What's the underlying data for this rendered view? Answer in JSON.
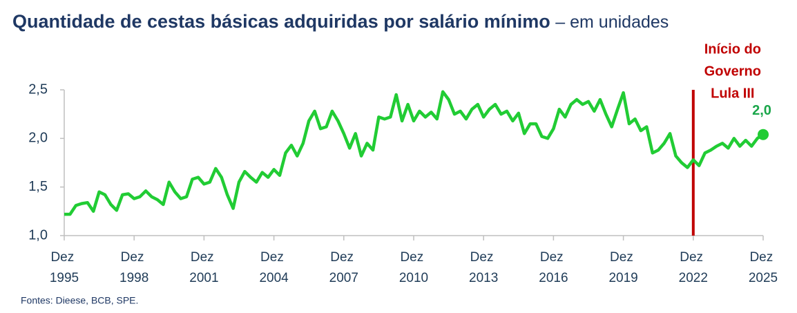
{
  "chart_data": {
    "type": "line",
    "title": "Quantidade de cestas básicas adquiridas por salário mínimo",
    "subtitle": "– em unidades",
    "source": "Fontes: Dieese, BCB, SPE.",
    "color": "#21cc34",
    "x": [
      "1995-12",
      "1996-03",
      "1996-06",
      "1996-09",
      "1996-12",
      "1997-03",
      "1997-06",
      "1997-09",
      "1997-12",
      "1998-03",
      "1998-06",
      "1998-09",
      "1998-12",
      "1999-03",
      "1999-06",
      "1999-09",
      "1999-12",
      "2000-03",
      "2000-06",
      "2000-09",
      "2000-12",
      "2001-03",
      "2001-06",
      "2001-09",
      "2001-12",
      "2002-03",
      "2002-06",
      "2002-09",
      "2002-12",
      "2003-03",
      "2003-06",
      "2003-09",
      "2003-12",
      "2004-03",
      "2004-06",
      "2004-09",
      "2004-12",
      "2005-03",
      "2005-06",
      "2005-09",
      "2005-12",
      "2006-03",
      "2006-06",
      "2006-09",
      "2006-12",
      "2007-03",
      "2007-06",
      "2007-09",
      "2007-12",
      "2008-03",
      "2008-06",
      "2008-09",
      "2008-12",
      "2009-03",
      "2009-06",
      "2009-09",
      "2009-12",
      "2010-03",
      "2010-06",
      "2010-09",
      "2010-12",
      "2011-03",
      "2011-06",
      "2011-09",
      "2011-12",
      "2012-03",
      "2012-06",
      "2012-09",
      "2012-12",
      "2013-03",
      "2013-06",
      "2013-09",
      "2013-12",
      "2014-03",
      "2014-06",
      "2014-09",
      "2014-12",
      "2015-03",
      "2015-06",
      "2015-09",
      "2015-12",
      "2016-03",
      "2016-06",
      "2016-09",
      "2016-12",
      "2017-03",
      "2017-06",
      "2017-09",
      "2017-12",
      "2018-03",
      "2018-06",
      "2018-09",
      "2018-12",
      "2019-03",
      "2019-06",
      "2019-09",
      "2019-12",
      "2020-03",
      "2020-06",
      "2020-09",
      "2020-12",
      "2021-03",
      "2021-06",
      "2021-09",
      "2021-12",
      "2022-03",
      "2022-06",
      "2022-09",
      "2022-12",
      "2023-03",
      "2023-06",
      "2023-09",
      "2023-12",
      "2024-03",
      "2024-06",
      "2024-09",
      "2024-12",
      "2025-03",
      "2025-06",
      "2025-09",
      "2025-12"
    ],
    "values": [
      1.22,
      1.22,
      1.31,
      1.33,
      1.34,
      1.25,
      1.45,
      1.42,
      1.32,
      1.26,
      1.42,
      1.43,
      1.38,
      1.4,
      1.46,
      1.4,
      1.37,
      1.32,
      1.55,
      1.45,
      1.38,
      1.4,
      1.58,
      1.6,
      1.53,
      1.55,
      1.69,
      1.6,
      1.42,
      1.28,
      1.55,
      1.66,
      1.6,
      1.55,
      1.65,
      1.6,
      1.68,
      1.62,
      1.85,
      1.93,
      1.82,
      1.95,
      2.18,
      2.28,
      2.1,
      2.12,
      2.28,
      2.18,
      2.05,
      1.9,
      2.05,
      1.82,
      1.95,
      1.88,
      2.22,
      2.2,
      2.22,
      2.45,
      2.18,
      2.35,
      2.18,
      2.28,
      2.22,
      2.27,
      2.2,
      2.48,
      2.4,
      2.25,
      2.28,
      2.2,
      2.3,
      2.35,
      2.22,
      2.3,
      2.35,
      2.25,
      2.28,
      2.18,
      2.26,
      2.05,
      2.15,
      2.15,
      2.02,
      2.0,
      2.1,
      2.3,
      2.22,
      2.35,
      2.4,
      2.35,
      2.38,
      2.28,
      2.4,
      2.25,
      2.12,
      2.3,
      2.47,
      2.15,
      2.2,
      2.08,
      2.12,
      1.85,
      1.88,
      1.95,
      2.05,
      1.82,
      1.75,
      1.7,
      1.78,
      1.72,
      1.85,
      1.88,
      1.92,
      1.95,
      1.9,
      2.0,
      1.92,
      1.98,
      1.92,
      2.0,
      2.04
    ],
    "end_label": "2,0",
    "xlim": [
      "1995-12",
      "2025-12"
    ],
    "xticks": [
      {
        "value": "1995-12",
        "label": "Dez 1995"
      },
      {
        "value": "1998-12",
        "label": "Dez 1998"
      },
      {
        "value": "2001-12",
        "label": "Dez 2001"
      },
      {
        "value": "2004-12",
        "label": "Dez 2004"
      },
      {
        "value": "2007-12",
        "label": "Dez 2007"
      },
      {
        "value": "2010-12",
        "label": "Dez 2010"
      },
      {
        "value": "2013-12",
        "label": "Dez 2013"
      },
      {
        "value": "2016-12",
        "label": "Dez 2016"
      },
      {
        "value": "2019-12",
        "label": "Dez 2019"
      },
      {
        "value": "2022-12",
        "label": "Dez 2022"
      },
      {
        "value": "2025-12",
        "label": "Dez 2025"
      }
    ],
    "ylim": [
      1.0,
      2.5
    ],
    "yticks": [
      {
        "value": 1.0,
        "label": "1,0"
      },
      {
        "value": 1.5,
        "label": "1,5"
      },
      {
        "value": 2.0,
        "label": "2,0"
      },
      {
        "value": 2.5,
        "label": "2,5"
      }
    ],
    "annotation": {
      "x": "2022-12",
      "lines": [
        "Início do",
        "Governo",
        "Lula III"
      ],
      "color": "#c00000"
    }
  }
}
